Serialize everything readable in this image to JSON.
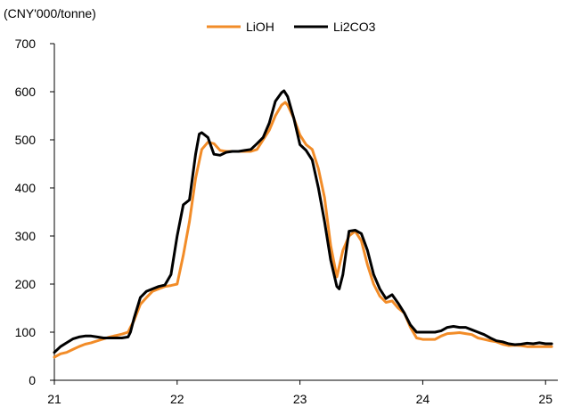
{
  "chart_data": {
    "type": "line",
    "title": "",
    "xlabel": "",
    "ylabel": "(CNY'000/tonne)",
    "x_ticks": [
      "21",
      "22",
      "23",
      "24",
      "25"
    ],
    "y_ticks": [
      "0",
      "100",
      "200",
      "300",
      "400",
      "500",
      "600",
      "700"
    ],
    "xlim": [
      21,
      25.1
    ],
    "ylim": [
      0,
      700
    ],
    "grid": false,
    "legend_position": "top-center",
    "series": [
      {
        "name": "LiOH",
        "color": "#F28C28",
        "x": [
          21.0,
          21.05,
          21.1,
          21.15,
          21.2,
          21.25,
          21.3,
          21.35,
          21.4,
          21.45,
          21.5,
          21.55,
          21.6,
          21.62,
          21.65,
          21.7,
          21.75,
          21.8,
          21.85,
          21.9,
          21.95,
          22.0,
          22.05,
          22.1,
          22.15,
          22.2,
          22.25,
          22.3,
          22.35,
          22.4,
          22.45,
          22.5,
          22.55,
          22.6,
          22.65,
          22.7,
          22.75,
          22.8,
          22.85,
          22.88,
          22.9,
          22.95,
          23.0,
          23.05,
          23.1,
          23.15,
          23.2,
          23.25,
          23.3,
          23.35,
          23.4,
          23.45,
          23.5,
          23.55,
          23.6,
          23.65,
          23.7,
          23.75,
          23.8,
          23.85,
          23.9,
          23.95,
          24.0,
          24.05,
          24.1,
          24.15,
          24.2,
          24.25,
          24.3,
          24.35,
          24.4,
          24.45,
          24.5,
          24.55,
          24.6,
          24.65,
          24.7,
          24.75,
          24.8,
          24.85,
          24.9,
          24.95,
          25.0,
          25.05
        ],
        "values": [
          48,
          55,
          58,
          64,
          70,
          75,
          78,
          82,
          86,
          90,
          93,
          96,
          100,
          110,
          125,
          158,
          172,
          185,
          190,
          195,
          197,
          200,
          260,
          330,
          420,
          480,
          495,
          492,
          478,
          476,
          476,
          476,
          476,
          476,
          480,
          500,
          520,
          550,
          572,
          578,
          572,
          545,
          510,
          490,
          480,
          440,
          380,
          280,
          215,
          270,
          300,
          310,
          290,
          240,
          200,
          175,
          162,
          165,
          150,
          140,
          110,
          88,
          85,
          85,
          85,
          92,
          97,
          98,
          99,
          97,
          95,
          88,
          85,
          82,
          80,
          75,
          72,
          73,
          72,
          70,
          70,
          70,
          70,
          70
        ]
      },
      {
        "name": "Li2CO3",
        "color": "#000000",
        "x": [
          21.0,
          21.05,
          21.1,
          21.15,
          21.2,
          21.25,
          21.3,
          21.35,
          21.4,
          21.45,
          21.5,
          21.55,
          21.6,
          21.62,
          21.65,
          21.7,
          21.75,
          21.8,
          21.85,
          21.9,
          21.95,
          22.0,
          22.05,
          22.1,
          22.15,
          22.18,
          22.2,
          22.25,
          22.3,
          22.35,
          22.4,
          22.45,
          22.5,
          22.55,
          22.6,
          22.65,
          22.7,
          22.75,
          22.8,
          22.85,
          22.87,
          22.9,
          22.95,
          23.0,
          23.05,
          23.1,
          23.15,
          23.2,
          23.25,
          23.3,
          23.32,
          23.35,
          23.4,
          23.45,
          23.5,
          23.55,
          23.6,
          23.65,
          23.7,
          23.75,
          23.8,
          23.85,
          23.9,
          23.95,
          24.0,
          24.05,
          24.1,
          24.15,
          24.2,
          24.25,
          24.3,
          24.35,
          24.4,
          24.45,
          24.5,
          24.55,
          24.6,
          24.65,
          24.7,
          24.75,
          24.8,
          24.85,
          24.9,
          24.95,
          25.0,
          25.05
        ],
        "values": [
          58,
          70,
          78,
          86,
          90,
          92,
          92,
          90,
          88,
          88,
          88,
          88,
          90,
          100,
          130,
          172,
          185,
          190,
          195,
          198,
          220,
          300,
          365,
          375,
          470,
          512,
          515,
          505,
          470,
          468,
          474,
          476,
          476,
          478,
          480,
          492,
          505,
          535,
          580,
          598,
          602,
          590,
          545,
          490,
          478,
          458,
          400,
          330,
          250,
          195,
          190,
          220,
          310,
          312,
          305,
          270,
          220,
          190,
          170,
          178,
          160,
          140,
          115,
          100,
          100,
          100,
          100,
          103,
          110,
          112,
          110,
          110,
          105,
          100,
          95,
          88,
          82,
          80,
          76,
          74,
          75,
          77,
          76,
          78,
          76,
          76
        ]
      }
    ]
  }
}
